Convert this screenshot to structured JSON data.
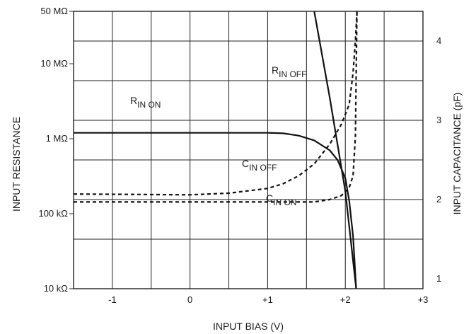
{
  "chart_data": {
    "type": "line",
    "xlabel": "INPUT BIAS (V)",
    "ylabel_left": "INPUT RESISTANCE",
    "ylabel_right": "INPUT CAPACITANCE (pF)",
    "x_scale": "linear",
    "xlim": [
      -1.5,
      3
    ],
    "x_ticks": [
      {
        "value": -1,
        "label": "-1"
      },
      {
        "value": 0,
        "label": "0"
      },
      {
        "value": 1,
        "label": "+1"
      },
      {
        "value": 2,
        "label": "+2"
      },
      {
        "value": 3,
        "label": "+3"
      }
    ],
    "y_left_scale": "log",
    "ylim_left_ohm": [
      10000,
      50000000
    ],
    "y_left_ticks": [
      {
        "value": 10000,
        "label": "10 kΩ"
      },
      {
        "value": 100000,
        "label": "100 kΩ"
      },
      {
        "value": 1000000,
        "label": "1 MΩ"
      },
      {
        "value": 10000000,
        "label": "10 MΩ"
      },
      {
        "value": 50000000,
        "label": "50 MΩ"
      }
    ],
    "ylim_right_pF": [
      0.875,
      4.375
    ],
    "y_right_ticks": [
      {
        "value": 1,
        "label": "1"
      },
      {
        "value": 2,
        "label": "2"
      },
      {
        "value": 3,
        "label": "3"
      },
      {
        "value": 4,
        "label": "4"
      }
    ],
    "grid": true,
    "series": [
      {
        "name": "R IN ON",
        "label_main": "R",
        "label_sub": "IN ON",
        "axis": "left",
        "style": "solid",
        "x": [
          -1.5,
          -1,
          0,
          1,
          1.2,
          1.4,
          1.6,
          1.8,
          1.9,
          2.0,
          2.05,
          2.1,
          2.14
        ],
        "y": [
          1200000,
          1200000,
          1200000,
          1200000,
          1180000,
          1100000,
          950000,
          700000,
          520000,
          300000,
          150000,
          50000,
          10000
        ]
      },
      {
        "name": "R IN OFF",
        "label_main": "R",
        "label_sub": "IN OFF",
        "axis": "left",
        "style": "solid",
        "x": [
          1.6,
          1.8,
          2.0,
          2.14
        ],
        "y": [
          50000000,
          3500000,
          200000,
          10000
        ]
      },
      {
        "name": "C IN OFF",
        "label_main": "C",
        "label_sub": "IN OFF",
        "axis": "right",
        "style": "dashed",
        "x": [
          -1.5,
          0,
          0.5,
          1,
          1.2,
          1.4,
          1.6,
          1.8,
          1.95,
          2.05,
          2.1,
          2.13,
          2.15
        ],
        "y": [
          2.07,
          2.06,
          2.08,
          2.14,
          2.2,
          2.3,
          2.45,
          2.7,
          2.95,
          3.2,
          3.6,
          4.0,
          4.38
        ]
      },
      {
        "name": "C IN ON",
        "label_main": "C",
        "label_sub": "IN ON",
        "axis": "right",
        "style": "dashed",
        "x": [
          -1.5,
          1.6,
          1.8,
          1.95,
          2.05,
          2.1,
          2.13,
          2.15
        ],
        "y": [
          1.97,
          1.97,
          2.0,
          2.05,
          2.15,
          2.3,
          2.8,
          4.38
        ]
      }
    ]
  }
}
